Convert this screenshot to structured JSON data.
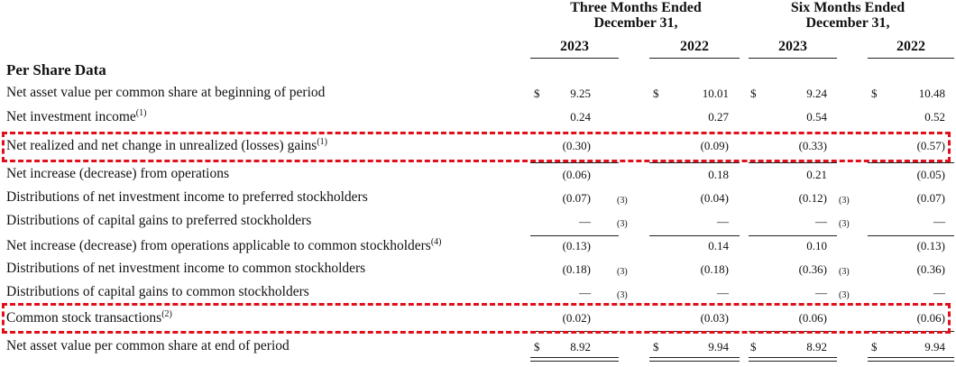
{
  "headers": {
    "group1_line1": "Three Months Ended",
    "group1_line2": "December 31,",
    "group2_line1": "Six Months Ended",
    "group2_line2": "December 31,",
    "years": [
      "2023",
      "2022",
      "2023",
      "2022"
    ]
  },
  "section_title": "Per Share Data",
  "rows": [
    {
      "label": "Net asset value per common share at beginning of period",
      "sup": "",
      "dollar": "$",
      "values": [
        "9.25",
        "10.01",
        "9.24",
        "10.48"
      ],
      "notes": [
        "",
        "",
        "",
        ""
      ]
    },
    {
      "label": "Net investment income",
      "sup": "(1)",
      "dollar": "",
      "values": [
        "0.24",
        "0.27",
        "0.54",
        "0.52"
      ],
      "notes": [
        "",
        "",
        "",
        ""
      ]
    },
    {
      "label": "Net realized and net change in unrealized (losses) gains",
      "sup": "(1)",
      "dollar": "",
      "values": [
        "(0.30)",
        "(0.09)",
        "(0.33)",
        "(0.57)"
      ],
      "notes": [
        "",
        "",
        "",
        ""
      ]
    },
    {
      "label": "Net increase (decrease) from operations",
      "sup": "",
      "dollar": "",
      "values": [
        "(0.06)",
        "0.18",
        "0.21",
        "(0.05)"
      ],
      "notes": [
        "",
        "",
        "",
        ""
      ]
    },
    {
      "label": "Distributions of net investment income to preferred stockholders",
      "sup": "",
      "dollar": "",
      "values": [
        "(0.07)",
        "(0.04)",
        "(0.12)",
        "(0.07)"
      ],
      "notes": [
        "(3)",
        "",
        "(3)",
        ""
      ]
    },
    {
      "label": "Distributions of capital gains to preferred stockholders",
      "sup": "",
      "dollar": "",
      "values": [
        "—",
        "—",
        "—",
        "—"
      ],
      "notes": [
        "(3)",
        "",
        "(3)",
        ""
      ]
    },
    {
      "label": "Net increase (decrease) from operations applicable to common stockholders",
      "sup": "(4)",
      "dollar": "",
      "values": [
        "(0.13)",
        "0.14",
        "0.10",
        "(0.13)"
      ],
      "notes": [
        "",
        "",
        "",
        ""
      ]
    },
    {
      "label": "Distributions of net investment income to common stockholders",
      "sup": "",
      "dollar": "",
      "values": [
        "(0.18)",
        "(0.18)",
        "(0.36)",
        "(0.36)"
      ],
      "notes": [
        "(3)",
        "",
        "(3)",
        ""
      ]
    },
    {
      "label": "Distributions of capital gains to common stockholders",
      "sup": "",
      "dollar": "",
      "values": [
        "—",
        "—",
        "—",
        "—"
      ],
      "notes": [
        "(3)",
        "",
        "(3)",
        ""
      ]
    },
    {
      "label": "Common stock transactions",
      "sup": "(2)",
      "dollar": "",
      "values": [
        "(0.02)",
        "(0.03)",
        "(0.06)",
        "(0.06)"
      ],
      "notes": [
        "",
        "",
        "",
        ""
      ]
    },
    {
      "label": "Net asset value per common share at end of period",
      "sup": "",
      "dollar": "$",
      "values": [
        "8.92",
        "9.94",
        "8.92",
        "9.94"
      ],
      "notes": [
        "",
        "",
        "",
        ""
      ]
    }
  ],
  "colors": {
    "highlight": "#e0101a",
    "text": "#111111"
  }
}
